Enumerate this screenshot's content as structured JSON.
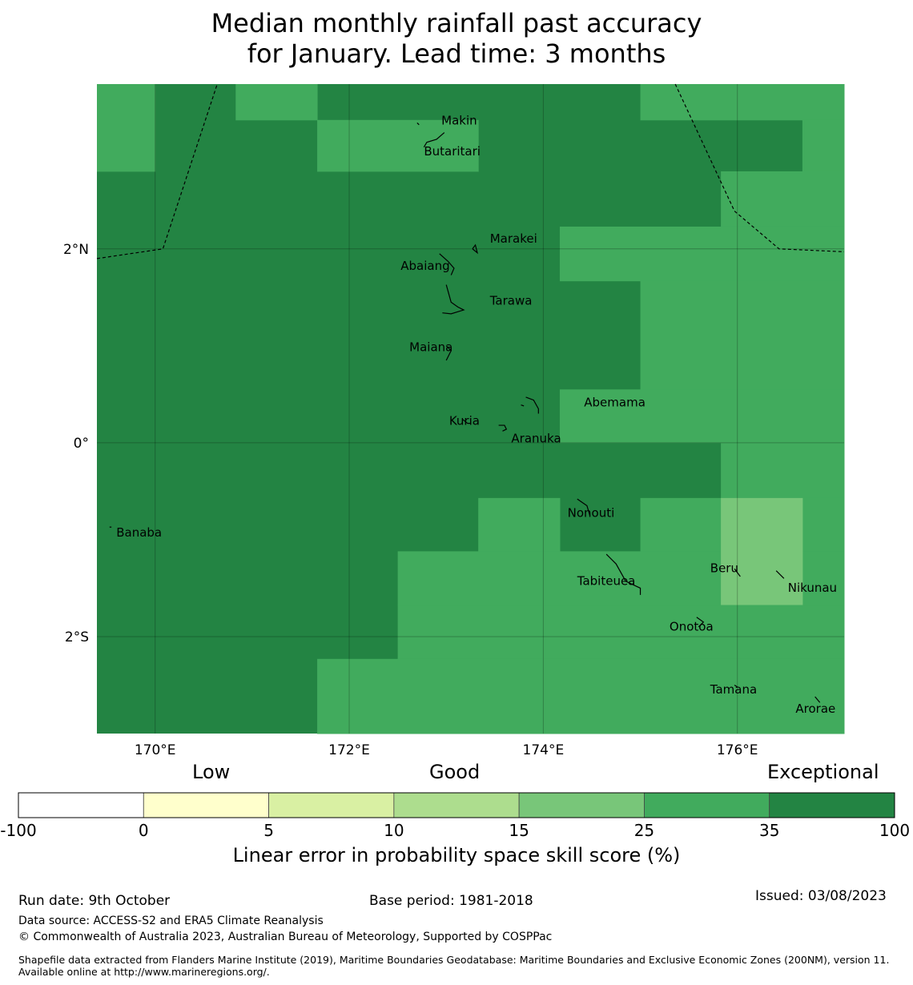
{
  "title": {
    "line1": "Median monthly rainfall past accuracy",
    "line2": "for January. Lead time: 3 months"
  },
  "map": {
    "lon_range": [
      169.4,
      177.1
    ],
    "lat_range": [
      -3.0,
      3.7
    ],
    "lon_ticks": [
      {
        "value": 170,
        "label": "170°E"
      },
      {
        "value": 172,
        "label": "172°E"
      },
      {
        "value": 174,
        "label": "174°E"
      },
      {
        "value": 176,
        "label": "176°E"
      }
    ],
    "lat_ticks": [
      {
        "value": 2,
        "label": "2°N"
      },
      {
        "value": 0,
        "label": "0°"
      },
      {
        "value": -2,
        "label": "2°S"
      }
    ],
    "base_color": "#238443",
    "cells": [
      {
        "lon0": 169.4,
        "lon1": 170.0,
        "lat0": 2.8,
        "lat1": 3.7,
        "color": "#41ab5d"
      },
      {
        "lon0": 170.83,
        "lon1": 171.67,
        "lat0": 3.33,
        "lat1": 3.7,
        "color": "#41ab5d"
      },
      {
        "lon0": 171.67,
        "lon1": 173.33,
        "lat0": 2.8,
        "lat1": 3.33,
        "color": "#41ab5d"
      },
      {
        "lon0": 175.0,
        "lon1": 177.1,
        "lat0": 3.33,
        "lat1": 3.7,
        "color": "#41ab5d"
      },
      {
        "lon0": 176.67,
        "lon1": 177.1,
        "lat0": 2.8,
        "lat1": 3.33,
        "color": "#41ab5d"
      },
      {
        "lon0": 175.83,
        "lon1": 177.1,
        "lat0": 2.23,
        "lat1": 2.8,
        "color": "#41ab5d"
      },
      {
        "lon0": 174.17,
        "lon1": 177.1,
        "lat0": 1.67,
        "lat1": 2.23,
        "color": "#41ab5d"
      },
      {
        "lon0": 175.0,
        "lon1": 177.1,
        "lat0": 0.55,
        "lat1": 1.67,
        "color": "#41ab5d"
      },
      {
        "lon0": 174.17,
        "lon1": 177.1,
        "lat0": 0.0,
        "lat1": 0.55,
        "color": "#41ab5d"
      },
      {
        "lon0": 175.83,
        "lon1": 177.1,
        "lat0": -0.57,
        "lat1": 0.0,
        "color": "#41ab5d"
      },
      {
        "lon0": 176.67,
        "lon1": 177.1,
        "lat0": -1.12,
        "lat1": -0.57,
        "color": "#41ab5d"
      },
      {
        "lon0": 173.33,
        "lon1": 174.17,
        "lat0": -1.12,
        "lat1": -0.57,
        "color": "#41ab5d"
      },
      {
        "lon0": 175.0,
        "lon1": 175.83,
        "lat0": -1.12,
        "lat1": -0.57,
        "color": "#41ab5d"
      },
      {
        "lon0": 172.5,
        "lon1": 175.83,
        "lat0": -1.67,
        "lat1": -1.12,
        "color": "#41ab5d"
      },
      {
        "lon0": 176.67,
        "lon1": 177.1,
        "lat0": -1.67,
        "lat1": -1.12,
        "color": "#41ab5d"
      },
      {
        "lon0": 172.5,
        "lon1": 177.1,
        "lat0": -2.23,
        "lat1": -1.67,
        "color": "#41ab5d"
      },
      {
        "lon0": 171.67,
        "lon1": 177.1,
        "lat0": -3.0,
        "lat1": -2.23,
        "color": "#41ab5d"
      },
      {
        "lon0": 175.83,
        "lon1": 176.67,
        "lat0": -1.67,
        "lat1": -0.57,
        "color": "#78c679"
      }
    ],
    "boundaries": [
      [
        [
          169.4,
          1.9
        ],
        [
          170.08,
          2.0
        ],
        [
          170.64,
          3.7
        ]
      ],
      [
        [
          175.36,
          3.7
        ],
        [
          175.97,
          2.39
        ],
        [
          176.43,
          2.0
        ],
        [
          177.1,
          1.97
        ]
      ]
    ],
    "places": [
      {
        "name": "Makin",
        "lon": 172.95,
        "lat": 3.32
      },
      {
        "name": "Butaritari",
        "lon": 172.77,
        "lat": 3.0
      },
      {
        "name": "Marakei",
        "lon": 173.45,
        "lat": 2.1
      },
      {
        "name": "Abaiang",
        "lon": 172.53,
        "lat": 1.82
      },
      {
        "name": "Tarawa",
        "lon": 173.45,
        "lat": 1.46
      },
      {
        "name": "Maiana",
        "lon": 172.62,
        "lat": 0.98
      },
      {
        "name": "Abemama",
        "lon": 174.42,
        "lat": 0.41
      },
      {
        "name": "Kuria",
        "lon": 173.03,
        "lat": 0.22
      },
      {
        "name": "Aranuka",
        "lon": 173.67,
        "lat": 0.04
      },
      {
        "name": "Nonouti",
        "lon": 174.25,
        "lat": -0.73
      },
      {
        "name": "Banaba",
        "lon": 169.6,
        "lat": -0.93
      },
      {
        "name": "Tabiteuea",
        "lon": 174.35,
        "lat": -1.43
      },
      {
        "name": "Beru",
        "lon": 175.72,
        "lat": -1.3
      },
      {
        "name": "Nikunau",
        "lon": 176.52,
        "lat": -1.5
      },
      {
        "name": "Onotoa",
        "lon": 175.3,
        "lat": -1.9
      },
      {
        "name": "Tamana",
        "lon": 175.72,
        "lat": -2.55
      },
      {
        "name": "Arorae",
        "lon": 176.6,
        "lat": -2.75
      }
    ],
    "islands": [
      [
        [
          172.7,
          3.3
        ],
        [
          172.72,
          3.28
        ]
      ],
      [
        [
          172.98,
          3.2
        ],
        [
          172.9,
          3.13
        ],
        [
          172.8,
          3.1
        ],
        [
          172.77,
          3.05
        ]
      ],
      [
        [
          173.27,
          2.0
        ],
        [
          173.3,
          2.04
        ],
        [
          173.32,
          1.96
        ],
        [
          173.27,
          2.0
        ]
      ],
      [
        [
          172.93,
          1.95
        ],
        [
          173.02,
          1.87
        ],
        [
          173.08,
          1.8
        ],
        [
          173.05,
          1.73
        ]
      ],
      [
        [
          173.0,
          1.63
        ],
        [
          173.05,
          1.45
        ],
        [
          173.12,
          1.4
        ],
        [
          173.18,
          1.37
        ],
        [
          173.05,
          1.33
        ],
        [
          172.96,
          1.34
        ]
      ],
      [
        [
          173.0,
          1.0
        ],
        [
          173.05,
          0.95
        ],
        [
          173.0,
          0.85
        ]
      ],
      [
        [
          173.82,
          0.47
        ],
        [
          173.9,
          0.44
        ],
        [
          173.95,
          0.35
        ],
        [
          173.95,
          0.3
        ]
      ],
      [
        [
          173.77,
          0.39
        ],
        [
          173.8,
          0.38
        ]
      ],
      [
        [
          173.17,
          0.24
        ],
        [
          173.22,
          0.2
        ],
        [
          173.25,
          0.2
        ]
      ],
      [
        [
          173.54,
          0.18
        ],
        [
          173.6,
          0.18
        ],
        [
          173.62,
          0.14
        ],
        [
          173.58,
          0.12
        ]
      ],
      [
        [
          174.35,
          -0.58
        ],
        [
          174.45,
          -0.65
        ],
        [
          174.48,
          -0.75
        ]
      ],
      [
        [
          174.65,
          -1.15
        ],
        [
          174.75,
          -1.25
        ],
        [
          174.85,
          -1.43
        ],
        [
          175.0,
          -1.5
        ],
        [
          175.0,
          -1.57
        ]
      ],
      [
        [
          175.58,
          -1.8
        ],
        [
          175.65,
          -1.85
        ],
        [
          175.6,
          -1.9
        ]
      ],
      [
        [
          175.97,
          -1.3
        ],
        [
          176.03,
          -1.38
        ]
      ],
      [
        [
          176.4,
          -1.32
        ],
        [
          176.48,
          -1.4
        ]
      ],
      [
        [
          175.97,
          -2.5
        ],
        [
          176.0,
          -2.52
        ]
      ],
      [
        [
          176.8,
          -2.62
        ],
        [
          176.85,
          -2.68
        ]
      ],
      [
        [
          169.53,
          -0.87
        ],
        [
          169.55,
          -0.87
        ]
      ]
    ]
  },
  "colorbar": {
    "categories": {
      "low": "Low",
      "good": "Good",
      "exceptional": "Exceptional"
    },
    "bins": [
      {
        "from": -100,
        "to": 0,
        "color": "#ffffff"
      },
      {
        "from": 0,
        "to": 5,
        "color": "#ffffcc"
      },
      {
        "from": 5,
        "to": 10,
        "color": "#d9f0a3"
      },
      {
        "from": 10,
        "to": 15,
        "color": "#addd8e"
      },
      {
        "from": 15,
        "to": 25,
        "color": "#78c679"
      },
      {
        "from": 25,
        "to": 35,
        "color": "#41ab5d"
      },
      {
        "from": 35,
        "to": 100,
        "color": "#238443"
      }
    ],
    "tick_labels": [
      "-100",
      "0",
      "5",
      "10",
      "15",
      "25",
      "35",
      "100"
    ],
    "axis_label": "Linear error in probability space skill score (%)"
  },
  "footer": {
    "run_date": "Run date: 9th October",
    "base_period": "Base period: 1981-2018",
    "issued": "Issued: 03/08/2023",
    "data_source": "Data source: ACCESS-S2 and ERA5 Climate Reanalysis",
    "copyright": "© Commonwealth of Australia 2023, Australian Bureau of Meteorology, Supported by COSPPac",
    "shapefile": "Shapefile data extracted from Flanders Marine Institute (2019), Maritime Boundaries Geodatabase: Maritime Boundaries and Exclusive Economic Zones (200NM), version 11. Available online at http://www.marineregions.org/."
  }
}
